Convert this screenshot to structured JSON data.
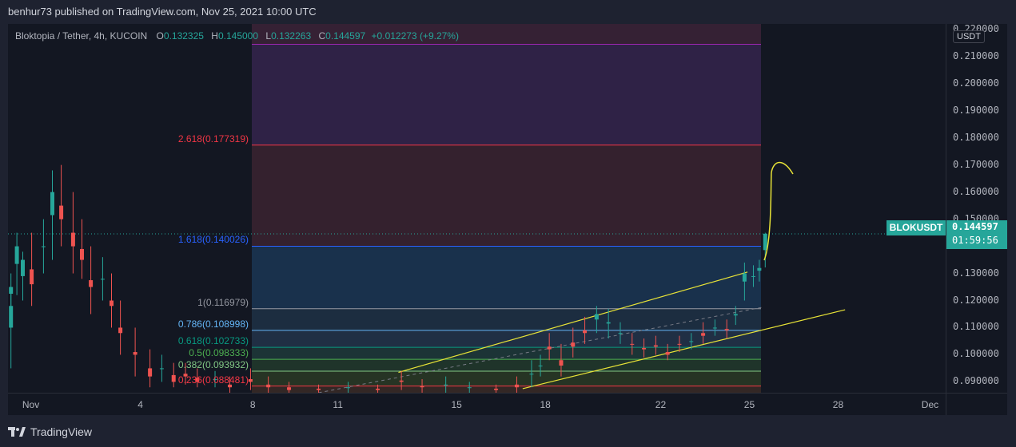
{
  "header": {
    "publish_text": "benhur73 published on TradingView.com, Nov 25, 2021 10:00 UTC"
  },
  "legend": {
    "symbol_text": "Bloktopia / Tether, 4h, KUCOIN",
    "open_label": "O",
    "open_value": "0.132325",
    "high_label": "H",
    "high_value": "0.145000",
    "low_label": "L",
    "low_value": "0.132263",
    "close_label": "C",
    "close_value": "0.144597",
    "change_value": "+0.012273 (+9.27%)"
  },
  "price_axis": {
    "currency": "USDT",
    "ticks": [
      "0.220000",
      "0.210000",
      "0.200000",
      "0.190000",
      "0.180000",
      "0.170000",
      "0.160000",
      "0.150000",
      "0.130000",
      "0.120000",
      "0.110000",
      "0.100000",
      "0.090000"
    ]
  },
  "time_axis": {
    "ticks": [
      "Nov",
      "4",
      "8",
      "11",
      "15",
      "18",
      "22",
      "25",
      "28",
      "Dec"
    ]
  },
  "last_price": {
    "symbol": "BLOKUSDT",
    "price": "0.144597",
    "countdown": "01:59:56"
  },
  "fib_levels": [
    {
      "label": "2.618(0.177319)",
      "price": 0.177319,
      "color": "#f23645"
    },
    {
      "label": "1.618(0.140026)",
      "price": 0.140026,
      "color": "#2962ff"
    },
    {
      "label": "1(0.116979)",
      "price": 0.116979,
      "color": "#9598a1"
    },
    {
      "label": "0.786(0.108998)",
      "price": 0.108998,
      "color": "#64b5f6"
    },
    {
      "label": "0.618(0.102733)",
      "price": 0.102733,
      "color": "#089981"
    },
    {
      "label": "0.5(0.098333)",
      "price": 0.098333,
      "color": "#4caf50"
    },
    {
      "label": "0.382(0.093932)",
      "price": 0.093932,
      "color": "#81c784"
    },
    {
      "label": "0.236(0.088481)",
      "price": 0.088481,
      "color": "#f23645"
    }
  ],
  "chart_data": {
    "type": "candlestick",
    "price_range": [
      0.086,
      0.222
    ],
    "day_range": [
      0,
      31.7
    ],
    "candles": [
      [
        0.1,
        0.118,
        0.125,
        0.095
      ],
      [
        0.1,
        0.125,
        0.13,
        0.115
      ],
      [
        0.3,
        0.14,
        0.145,
        0.122
      ],
      [
        0.5,
        0.135,
        0.138,
        0.12
      ],
      [
        0.8,
        0.126,
        0.145,
        0.118
      ],
      [
        1.2,
        0.14,
        0.15,
        0.13
      ],
      [
        1.5,
        0.16,
        0.168,
        0.135
      ],
      [
        1.8,
        0.15,
        0.17,
        0.14
      ],
      [
        2.2,
        0.14,
        0.16,
        0.13
      ],
      [
        2.5,
        0.135,
        0.15,
        0.128
      ],
      [
        2.8,
        0.125,
        0.14,
        0.115
      ],
      [
        3.2,
        0.128,
        0.136,
        0.12
      ],
      [
        3.5,
        0.118,
        0.13,
        0.11
      ],
      [
        3.8,
        0.108,
        0.12,
        0.1
      ],
      [
        4.3,
        0.1,
        0.11,
        0.092
      ],
      [
        4.8,
        0.092,
        0.102,
        0.088
      ],
      [
        5.2,
        0.095,
        0.1,
        0.09
      ],
      [
        5.6,
        0.09,
        0.097,
        0.088
      ],
      [
        6.0,
        0.092,
        0.097,
        0.089
      ],
      [
        6.4,
        0.09,
        0.095,
        0.088
      ],
      [
        7.0,
        0.091,
        0.094,
        0.088
      ],
      [
        7.5,
        0.088,
        0.092,
        0.086
      ],
      [
        8.2,
        0.09,
        0.095,
        0.087
      ],
      [
        8.8,
        0.088,
        0.092,
        0.086
      ],
      [
        9.5,
        0.087,
        0.09,
        0.086
      ],
      [
        10.5,
        0.087,
        0.089,
        0.086
      ],
      [
        11.5,
        0.088,
        0.09,
        0.086
      ],
      [
        12.5,
        0.087,
        0.089,
        0.086
      ],
      [
        13.3,
        0.09,
        0.094,
        0.087
      ],
      [
        14.0,
        0.088,
        0.091,
        0.086
      ],
      [
        14.8,
        0.089,
        0.092,
        0.086
      ],
      [
        15.6,
        0.088,
        0.09,
        0.086
      ],
      [
        16.5,
        0.087,
        0.089,
        0.086
      ],
      [
        17.2,
        0.088,
        0.092,
        0.086
      ],
      [
        17.7,
        0.093,
        0.098,
        0.088
      ],
      [
        18.0,
        0.096,
        0.1,
        0.092
      ],
      [
        18.3,
        0.102,
        0.108,
        0.098
      ],
      [
        18.7,
        0.096,
        0.104,
        0.092
      ],
      [
        19.1,
        0.103,
        0.11,
        0.099
      ],
      [
        19.5,
        0.108,
        0.114,
        0.104
      ],
      [
        19.9,
        0.115,
        0.118,
        0.108
      ],
      [
        20.3,
        0.112,
        0.117,
        0.106
      ],
      [
        20.7,
        0.108,
        0.112,
        0.104
      ],
      [
        21.1,
        0.104,
        0.108,
        0.1
      ],
      [
        21.5,
        0.102,
        0.106,
        0.099
      ],
      [
        21.9,
        0.103,
        0.107,
        0.1
      ],
      [
        22.3,
        0.1,
        0.104,
        0.098
      ],
      [
        22.7,
        0.104,
        0.107,
        0.101
      ],
      [
        23.1,
        0.105,
        0.108,
        0.102
      ],
      [
        23.5,
        0.107,
        0.112,
        0.104
      ],
      [
        23.9,
        0.11,
        0.113,
        0.107
      ],
      [
        24.3,
        0.109,
        0.113,
        0.106
      ],
      [
        24.6,
        0.115,
        0.118,
        0.111
      ],
      [
        24.9,
        0.13,
        0.134,
        0.12
      ],
      [
        25.2,
        0.129,
        0.133,
        0.125
      ],
      [
        25.4,
        0.132,
        0.135,
        0.127
      ],
      [
        25.6,
        0.1446,
        0.145,
        0.1322
      ]
    ],
    "channel_upper": [
      [
        13.2,
        0.0935
      ],
      [
        25.0,
        0.1305
      ]
    ],
    "channel_lower": [
      [
        17.4,
        0.0875
      ],
      [
        28.3,
        0.1166
      ]
    ]
  }
}
